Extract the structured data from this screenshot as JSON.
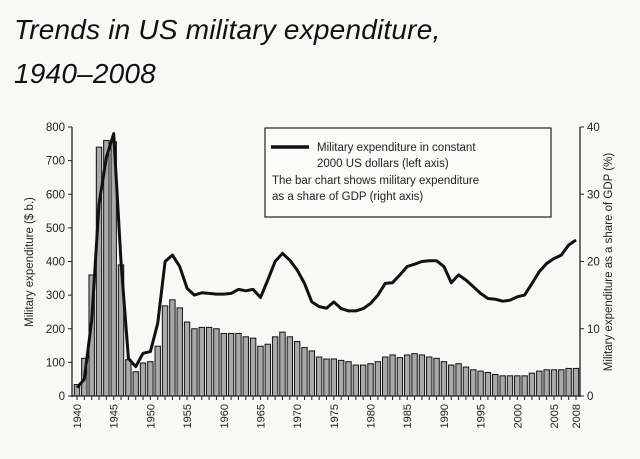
{
  "chart_data": {
    "type": "bar+line",
    "title": "Trends in US military expenditure,",
    "subtitle": "1940–2008",
    "ylabel_left": "Military expenditure ($ b.)",
    "ylabel_right": "Military expenditure as a share of GDP (%)",
    "ylim_left": [
      0,
      800
    ],
    "ylim_right": [
      0,
      40
    ],
    "yticks_left": [
      0,
      100,
      200,
      300,
      400,
      500,
      600,
      700,
      800
    ],
    "yticks_right": [
      0,
      10,
      20,
      30,
      40
    ],
    "xtick_labels": [
      "1940",
      "1945",
      "1950",
      "1955",
      "1960",
      "1965",
      "1970",
      "1975",
      "1980",
      "1985",
      "1990",
      "1995",
      "2000",
      "2005",
      "2008"
    ],
    "grid": false,
    "legend_position": "top-right",
    "legend": {
      "line_label_1": "Military expenditure in constant",
      "line_label_2": "2000 US dollars (left axis)",
      "bar_note_1": "The bar chart shows military expenditure",
      "bar_note_2": "as a share of GDP (right axis)"
    },
    "years": [
      1940,
      1941,
      1942,
      1943,
      1944,
      1945,
      1946,
      1947,
      1948,
      1949,
      1950,
      1951,
      1952,
      1953,
      1954,
      1955,
      1956,
      1957,
      1958,
      1959,
      1960,
      1961,
      1962,
      1963,
      1964,
      1965,
      1966,
      1967,
      1968,
      1969,
      1970,
      1971,
      1972,
      1973,
      1974,
      1975,
      1976,
      1977,
      1978,
      1979,
      1980,
      1981,
      1982,
      1983,
      1984,
      1985,
      1986,
      1987,
      1988,
      1989,
      1990,
      1991,
      1992,
      1993,
      1994,
      1995,
      1996,
      1997,
      1998,
      1999,
      2000,
      2001,
      2002,
      2003,
      2004,
      2005,
      2006,
      2007,
      2008
    ],
    "series": [
      {
        "name": "Military expenditure in constant 2000 US dollars (left axis)",
        "type": "line",
        "axis": "left",
        "values": [
          25,
          50,
          225,
          570,
          710,
          780,
          400,
          112,
          87,
          127,
          132,
          216,
          400,
          419,
          385,
          320,
          300,
          307,
          305,
          303,
          303,
          305,
          317,
          313,
          317,
          293,
          345,
          400,
          424,
          404,
          375,
          335,
          280,
          266,
          261,
          280,
          260,
          253,
          253,
          260,
          275,
          300,
          335,
          337,
          360,
          385,
          392,
          400,
          402,
          402,
          385,
          337,
          360,
          345,
          325,
          305,
          290,
          288,
          282,
          285,
          295,
          300,
          335,
          370,
          394,
          409,
          419,
          449,
          464
        ]
      },
      {
        "name": "Military expenditure as a share of GDP (right axis)",
        "type": "bar",
        "axis": "right",
        "color": "#a9a9a9",
        "values": [
          1.7,
          5.6,
          18,
          37,
          38,
          37.8,
          19.5,
          5.4,
          3.6,
          4.9,
          5.1,
          7.4,
          13.4,
          14.3,
          13.1,
          11,
          10,
          10.2,
          10.2,
          10,
          9.3,
          9.3,
          9.3,
          8.8,
          8.6,
          7.4,
          7.7,
          8.8,
          9.5,
          8.8,
          8.1,
          7.2,
          6.7,
          5.8,
          5.5,
          5.5,
          5.3,
          5.1,
          4.6,
          4.6,
          4.8,
          5.1,
          5.8,
          6.1,
          5.7,
          6.1,
          6.3,
          6.1,
          5.8,
          5.6,
          5.1,
          4.6,
          4.8,
          4.3,
          3.9,
          3.7,
          3.5,
          3.2,
          3.0,
          3.0,
          3.0,
          3.0,
          3.4,
          3.7,
          3.9,
          3.9,
          3.9,
          4.1,
          4.1
        ]
      }
    ]
  }
}
